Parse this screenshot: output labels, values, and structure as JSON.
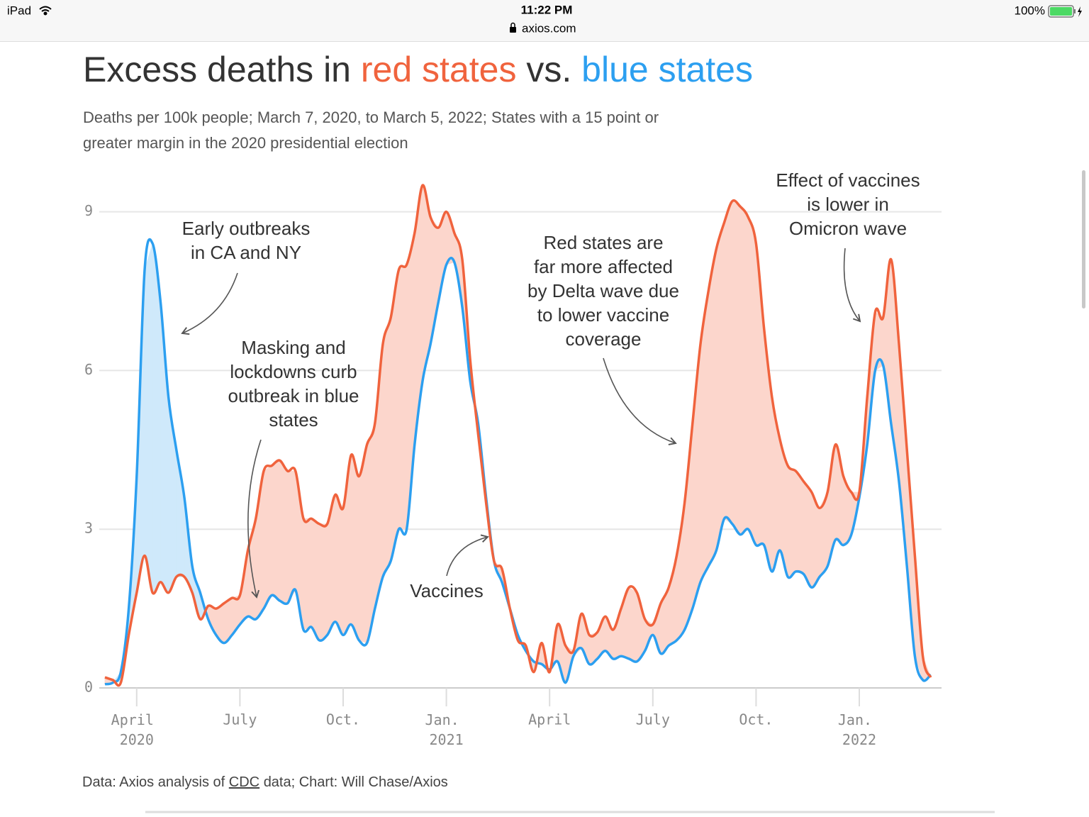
{
  "status_bar": {
    "device": "iPad",
    "time": "11:22 PM",
    "url": "axios.com",
    "battery": "100%"
  },
  "chart_data": {
    "type": "line",
    "title": [
      "Excess deaths in",
      "red states",
      "vs.",
      "blue states"
    ],
    "subtitle": [
      "Deaths per 100k people; March 7, 2020, to March 5, 2022; States with a 15 point or",
      "greater margin in the 2020 presidential election"
    ],
    "categories": [
      null,
      null,
      null,
      null,
      "April 2020",
      null,
      null,
      null,
      null,
      null,
      null,
      null,
      null,
      null,
      null,
      null,
      null,
      "July",
      null,
      null,
      null,
      null,
      null,
      null,
      null,
      null,
      null,
      null,
      null,
      null,
      "Oct.",
      null,
      null,
      null,
      null,
      null,
      null,
      null,
      null,
      null,
      null,
      null,
      null,
      "Jan. 2021",
      null,
      null,
      null,
      null,
      null,
      null,
      null,
      null,
      null,
      null,
      null,
      null,
      "April",
      null,
      null,
      null,
      null,
      null,
      null,
      null,
      null,
      null,
      null,
      null,
      null,
      "July",
      null,
      null,
      null,
      null,
      null,
      null,
      null,
      null,
      null,
      null,
      null,
      null,
      "Oct.",
      null,
      null,
      null,
      null,
      null,
      null,
      null,
      null,
      null,
      null,
      null,
      null,
      "Jan. 2022",
      null,
      null,
      null,
      null,
      null,
      null,
      null,
      null,
      null
    ],
    "series": [
      {
        "color": "#f0633d",
        "fill": "#fcd6cc",
        "values": [
          0.2,
          0.15,
          0.1,
          1.0,
          1.8,
          2.5,
          1.8,
          2.0,
          1.8,
          2.1,
          2.1,
          1.8,
          1.3,
          1.55,
          1.5,
          1.6,
          1.7,
          1.75,
          2.6,
          3.2,
          4.1,
          4.2,
          4.3,
          4.1,
          4.1,
          3.2,
          3.2,
          3.1,
          3.1,
          3.65,
          3.4,
          4.4,
          4.0,
          4.6,
          5.0,
          6.5,
          7.0,
          7.9,
          8.0,
          8.6,
          9.5,
          8.9,
          8.7,
          9.0,
          8.6,
          8.1,
          6.2,
          4.8,
          3.5,
          2.4,
          2.25,
          1.5,
          0.9,
          0.8,
          0.3,
          0.85,
          0.3,
          1.2,
          0.8,
          0.7,
          1.4,
          1.0,
          1.05,
          1.35,
          1.1,
          1.5,
          1.9,
          1.8,
          1.3,
          1.2,
          1.6,
          1.9,
          2.5,
          3.5,
          5.0,
          6.5,
          7.5,
          8.3,
          8.8,
          9.2,
          9.1,
          8.9,
          8.4,
          6.8,
          5.5,
          4.7,
          4.2,
          4.1,
          3.9,
          3.7,
          3.4,
          3.7,
          4.6,
          4.0,
          3.7,
          3.7,
          5.5,
          7.1,
          7.0,
          8.1,
          6.5,
          4.5,
          2.5,
          0.6,
          0.2
        ]
      },
      {
        "color": "#2c9ff0",
        "fill": "#cfe9fb",
        "values": [
          0.07,
          0.1,
          0.3,
          1.5,
          4.0,
          7.9,
          8.4,
          7.3,
          5.5,
          4.5,
          3.6,
          2.3,
          1.8,
          1.3,
          1.0,
          0.85,
          1.0,
          1.2,
          1.35,
          1.3,
          1.5,
          1.75,
          1.65,
          1.6,
          1.85,
          1.1,
          1.15,
          0.9,
          1.0,
          1.25,
          1.0,
          1.2,
          0.9,
          0.85,
          1.5,
          2.1,
          2.4,
          3.0,
          3.0,
          4.6,
          5.8,
          6.5,
          7.3,
          8.0,
          8.05,
          7.2,
          5.8,
          5.0,
          3.6,
          2.4,
          2.0,
          1.5,
          1.0,
          0.7,
          0.5,
          0.45,
          0.35,
          0.5,
          0.1,
          0.6,
          0.75,
          0.45,
          0.55,
          0.7,
          0.55,
          0.6,
          0.55,
          0.5,
          0.7,
          1.0,
          0.65,
          0.8,
          0.9,
          1.1,
          1.5,
          2.0,
          2.3,
          2.6,
          3.2,
          3.1,
          2.9,
          3.0,
          2.7,
          2.7,
          2.2,
          2.6,
          2.1,
          2.2,
          2.15,
          1.9,
          2.1,
          2.3,
          2.8,
          2.7,
          2.9,
          3.6,
          4.6,
          6.0,
          6.1,
          5.0,
          3.9,
          2.3,
          0.6,
          0.15,
          0.25
        ]
      }
    ],
    "ylim": [
      0,
      9.6
    ],
    "yticks": [
      0,
      3,
      6,
      9
    ],
    "grid": true,
    "annotations": [
      [
        "Early outbreaks",
        "in CA and NY"
      ],
      [
        "Masking and",
        "lockdowns curb",
        "outbreak in blue",
        "states"
      ],
      [
        "Vaccines"
      ],
      [
        "Red states are",
        "far more affected",
        "by Delta wave due",
        "to lower vaccine",
        "coverage"
      ],
      [
        "Effect of vaccines",
        "is lower in",
        "Omicron wave"
      ]
    ],
    "source": [
      "Data: Axios analysis of",
      "CDC",
      "data; Chart: Will Chase/Axios"
    ]
  }
}
